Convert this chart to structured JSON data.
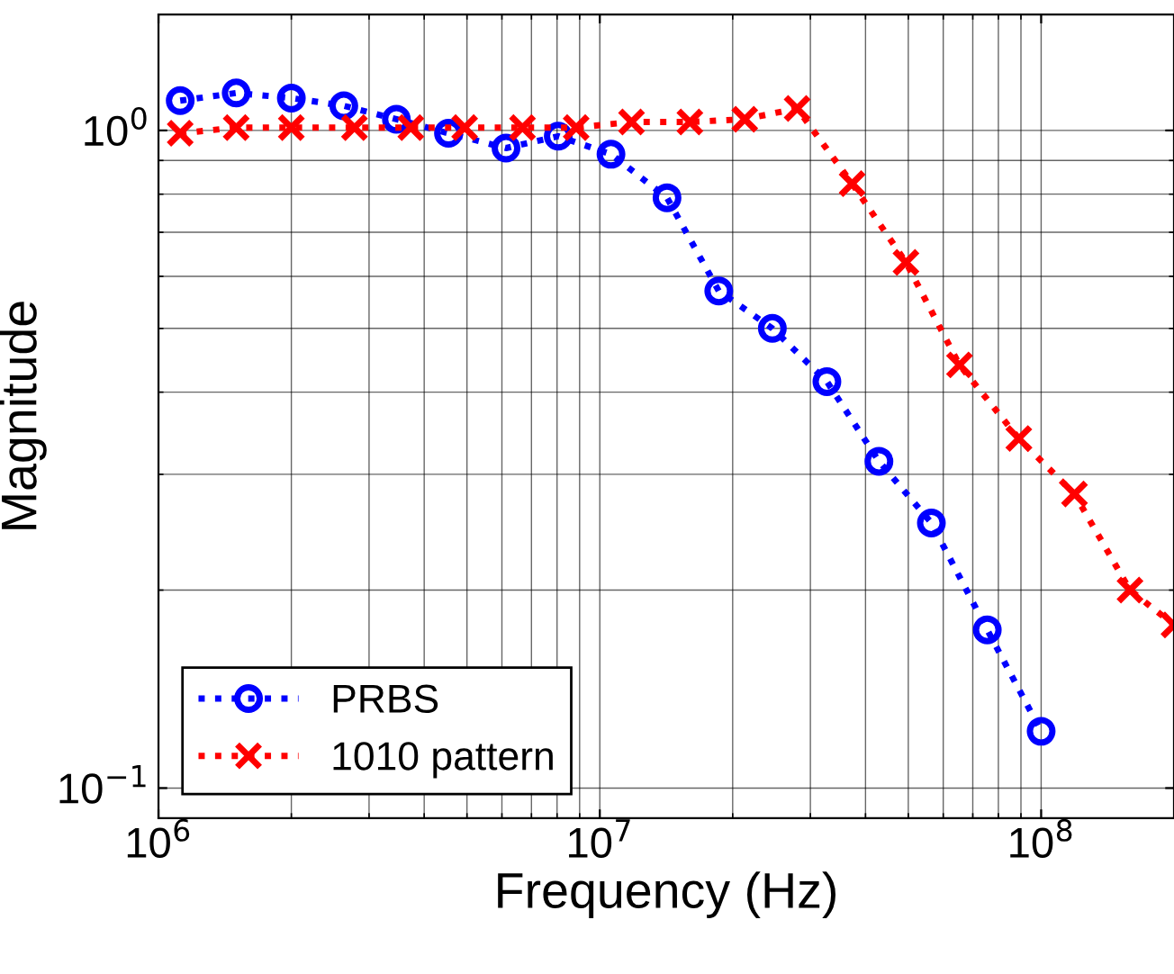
{
  "chart_data": {
    "type": "line",
    "xlabel": "Frequency (Hz)",
    "ylabel": "Magnitude",
    "log": "xy",
    "xlim": [
      1000000,
      200000000
    ],
    "ylim": [
      0.09,
      1.5
    ],
    "xticks": [
      {
        "value": 1000000,
        "label": "10$^{6}$"
      },
      {
        "value": 10000000,
        "label": "10$^{7}$"
      },
      {
        "value": 100000000,
        "label": "10$^{8}$"
      }
    ],
    "yticks": [
      {
        "value": 0.1,
        "label": "10$^{−1}$"
      },
      {
        "value": 1,
        "label": "10$^{0}$"
      }
    ],
    "grid": true,
    "legend": "bottom left",
    "line_style": "dotted",
    "series": [
      {
        "name": "PRBS",
        "color": "#0000ff",
        "marker": "circle",
        "x": [
          1120000,
          1500000,
          2000000,
          2630000,
          3460000,
          4540000,
          6130000,
          8050000,
          10600000,
          14200000,
          18600000,
          24600000,
          32700000,
          42900000,
          56400000,
          75500000,
          100000000
        ],
        "values": [
          1.11,
          1.14,
          1.12,
          1.09,
          1.04,
          0.99,
          0.94,
          0.98,
          0.92,
          0.79,
          0.57,
          0.5,
          0.415,
          0.314,
          0.253,
          0.174,
          0.122
        ]
      },
      {
        "name": "1010 pattern",
        "color": "#ff0000",
        "marker": "cross",
        "x": [
          1120000,
          1500000,
          2000000,
          2780000,
          3730000,
          4940000,
          6680000,
          8840000,
          11800000,
          16000000,
          21300000,
          28000000,
          37300000,
          49400000,
          65300000,
          89000000,
          119000000,
          159000000,
          200000000
        ],
        "values": [
          0.99,
          1.01,
          1.01,
          1.01,
          1.01,
          1.01,
          1.01,
          1.01,
          1.03,
          1.03,
          1.04,
          1.08,
          0.83,
          0.63,
          0.44,
          0.34,
          0.28,
          0.2,
          0.177
        ]
      }
    ]
  }
}
